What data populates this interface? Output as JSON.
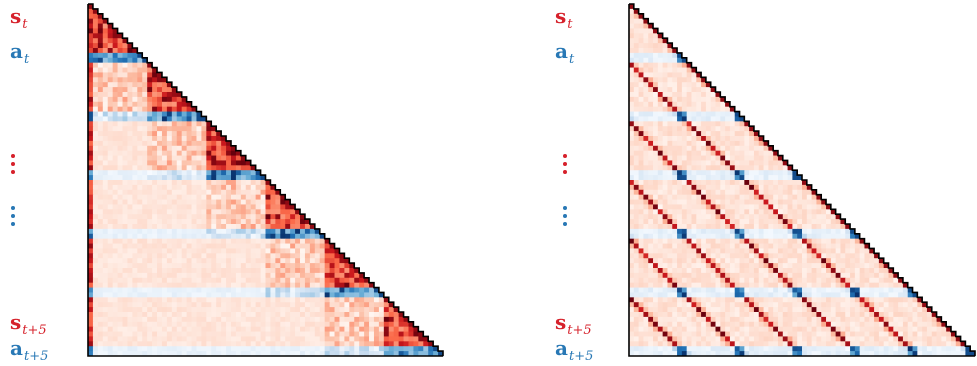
{
  "chart_data": [
    {
      "type": "heatmap",
      "shape": "lower-triangular",
      "size": 72,
      "block_structure": {
        "steps": 6,
        "state_rows": 10,
        "action_rows": 2
      },
      "pattern": "local-block",
      "row_labels": {
        "state_top": {
          "symbol": "s",
          "sub": "t"
        },
        "action_top": {
          "symbol": "a",
          "sub": "t"
        },
        "state_bottom": {
          "symbol": "s",
          "sub": "t+5"
        },
        "action_bottom": {
          "symbol": "a",
          "sub": "t+5"
        }
      },
      "colors": {
        "state": "#d6212b",
        "action": "#2878b5"
      }
    },
    {
      "type": "heatmap",
      "shape": "lower-triangular",
      "size": 72,
      "block_structure": {
        "steps": 6,
        "state_rows": 10,
        "action_rows": 2
      },
      "pattern": "periodic-diagonal",
      "row_labels": {
        "state_top": {
          "symbol": "s",
          "sub": "t"
        },
        "action_top": {
          "symbol": "a",
          "sub": "t"
        },
        "state_bottom": {
          "symbol": "s",
          "sub": "t+5"
        },
        "action_bottom": {
          "symbol": "a",
          "sub": "t+5"
        }
      },
      "colors": {
        "state": "#d6212b",
        "action": "#2878b5"
      }
    }
  ]
}
